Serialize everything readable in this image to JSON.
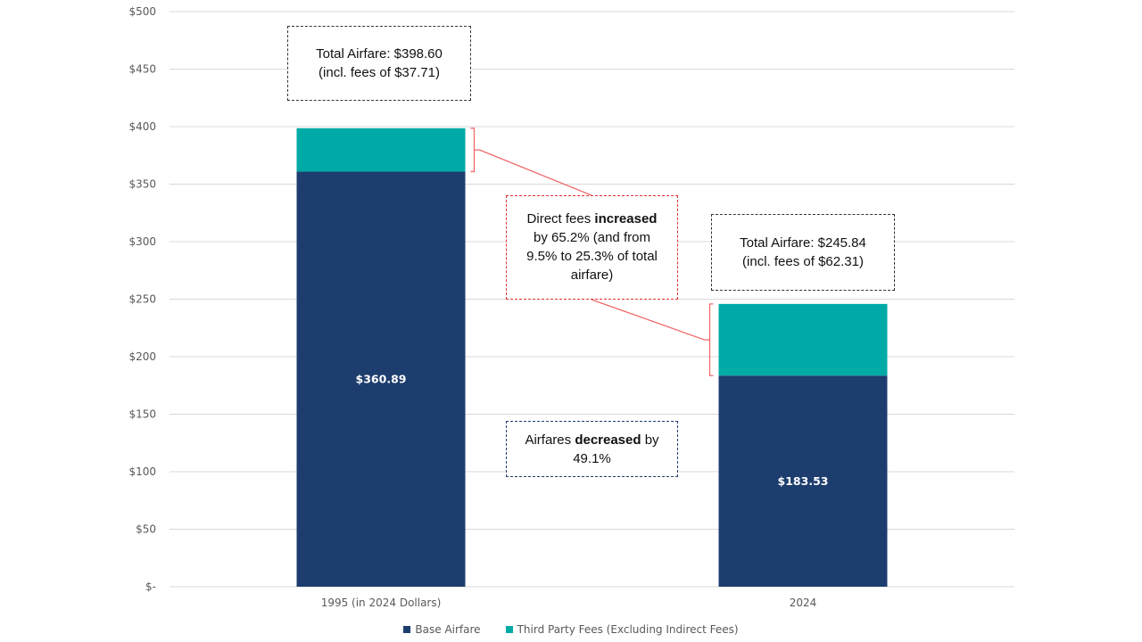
{
  "chart_data": {
    "type": "bar",
    "stacked": true,
    "categories": [
      "1995 (in 2024 Dollars)",
      "2024"
    ],
    "series": [
      {
        "name": "Base Airfare",
        "values": [
          360.89,
          183.53
        ],
        "color": "#1d3d6e"
      },
      {
        "name": "Third Party Fees (Excluding Indirect Fees)",
        "values": [
          37.71,
          62.31
        ],
        "color": "#00aaa6"
      }
    ],
    "segment_labels": [
      "$360.89",
      "$183.53"
    ],
    "y_ticks": [
      "$-",
      "$50",
      "$100",
      "$150",
      "$200",
      "$250",
      "$300",
      "$350",
      "$400",
      "$450",
      "$500"
    ],
    "ylim": [
      0,
      500
    ],
    "grid": true,
    "legend_position": "bottom"
  },
  "annotations": {
    "total_1995": {
      "line1": "Total Airfare: $398.60",
      "line2": "(incl. fees of $37.71)"
    },
    "total_2024": {
      "line1": "Total Airfare: $245.84",
      "line2": "(incl. fees of $62.31)"
    },
    "fees": {
      "prefix": "Direct fees ",
      "bold": "increased",
      "rest": "by 65.2% (and from 9.5% to 25.3% of total airfare)"
    },
    "airfares": {
      "prefix": "Airfares ",
      "bold": "decreased",
      "rest": " by 49.1%"
    }
  },
  "legend": {
    "items": [
      {
        "label": "Base Airfare",
        "color": "#1d3d6e"
      },
      {
        "label": "Third Party Fees (Excluding Indirect Fees)",
        "color": "#00aaa6"
      }
    ]
  }
}
